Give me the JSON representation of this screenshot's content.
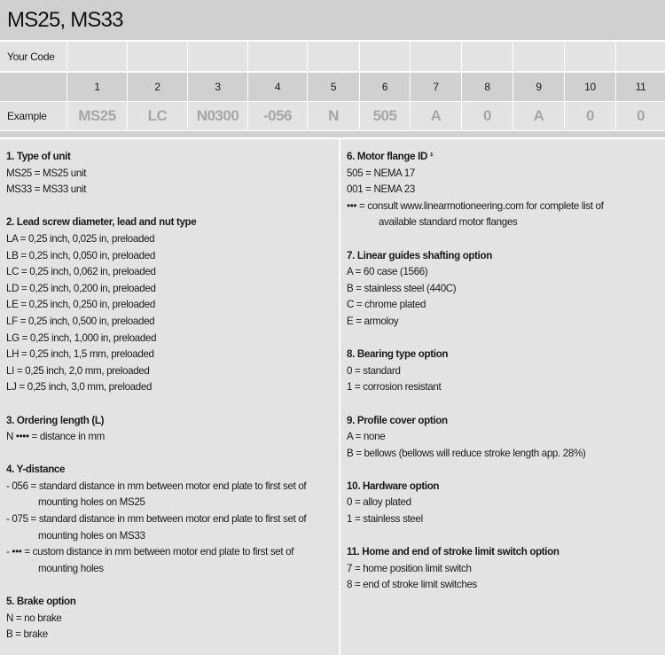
{
  "title": "MS25, MS33",
  "table": {
    "your_code_label": "Your Code",
    "example_label": "Example",
    "positions": [
      "1",
      "2",
      "3",
      "4",
      "5",
      "6",
      "7",
      "8",
      "9",
      "10",
      "11"
    ],
    "example_values": [
      "MS25",
      "LC",
      "N0300",
      "-056",
      "N",
      "505",
      "A",
      "0",
      "A",
      "0",
      "0"
    ]
  },
  "left_sections": [
    {
      "title": "1. Type of unit",
      "items": [
        {
          "text": "MS25 = MS25 unit"
        },
        {
          "text": "MS33 = MS33 unit"
        }
      ]
    },
    {
      "title": "2. Lead screw diameter, lead and nut type",
      "items": [
        {
          "text": "LA = 0,25 inch, 0,025 in, preloaded"
        },
        {
          "text": "LB = 0,25 inch, 0,050 in, preloaded"
        },
        {
          "text": "LC = 0,25 inch, 0,062 in, preloaded"
        },
        {
          "text": "LD = 0,25 inch, 0,200 in, preloaded"
        },
        {
          "text": "LE = 0,25 inch, 0,250 in, preloaded"
        },
        {
          "text": "LF = 0,25 inch, 0,500 in, preloaded"
        },
        {
          "text": "LG = 0,25 inch, 1,000 in, preloaded"
        },
        {
          "text": "LH = 0,25 inch, 1,5 mm, preloaded"
        },
        {
          "text": "LI = 0,25 inch, 2,0 mm, preloaded"
        },
        {
          "text": "LJ = 0,25 inch, 3,0 mm, preloaded"
        }
      ]
    },
    {
      "title": "3. Ordering length  (L)",
      "items": [
        {
          "text": "N •••• = distance in mm"
        }
      ]
    },
    {
      "title": "4. Y-distance",
      "items": [
        {
          "text": "- 056 = standard distance in mm between motor end plate to first set of",
          "cont": "mounting holes on MS25"
        },
        {
          "text": "- 075 = standard distance in mm between motor end plate to first set of",
          "cont": "mounting holes on MS33"
        },
        {
          "text": "- ••• = custom distance in mm between motor end plate to first set of",
          "cont": "mounting holes"
        }
      ]
    },
    {
      "title": "5. Brake option",
      "items": [
        {
          "text": "N = no brake"
        },
        {
          "text": "B = brake"
        }
      ]
    }
  ],
  "right_sections": [
    {
      "title": "6. Motor flange ID ¹",
      "items": [
        {
          "text": "505 = NEMA 17"
        },
        {
          "text": "001 = NEMA 23"
        },
        {
          "text": "••• = consult www.linearmotioneering.com for complete list of",
          "cont": "available standard motor flanges"
        }
      ]
    },
    {
      "title": "7. Linear guides shafting option",
      "items": [
        {
          "text": "A = 60 case (1566)"
        },
        {
          "text": "B = stainless steel (440C)"
        },
        {
          "text": "C = chrome plated"
        },
        {
          "text": "E = armoloy"
        }
      ]
    },
    {
      "title": "8. Bearing type option",
      "items": [
        {
          "text": "0 = standard"
        },
        {
          "text": "1 = corrosion resistant"
        }
      ]
    },
    {
      "title": "9. Profile cover option",
      "items": [
        {
          "text": "A = none"
        },
        {
          "text": "B = bellows (bellows will reduce stroke length app. 28%)"
        }
      ]
    },
    {
      "title": "10. Hardware option",
      "items": [
        {
          "text": "0 = alloy plated"
        },
        {
          "text": "1 = stainless steel"
        }
      ]
    },
    {
      "title": "11. Home and end of stroke limit switch option",
      "items": [
        {
          "text": "7 = home position limit switch"
        },
        {
          "text": "8 = end of stroke limit switches"
        }
      ]
    }
  ]
}
